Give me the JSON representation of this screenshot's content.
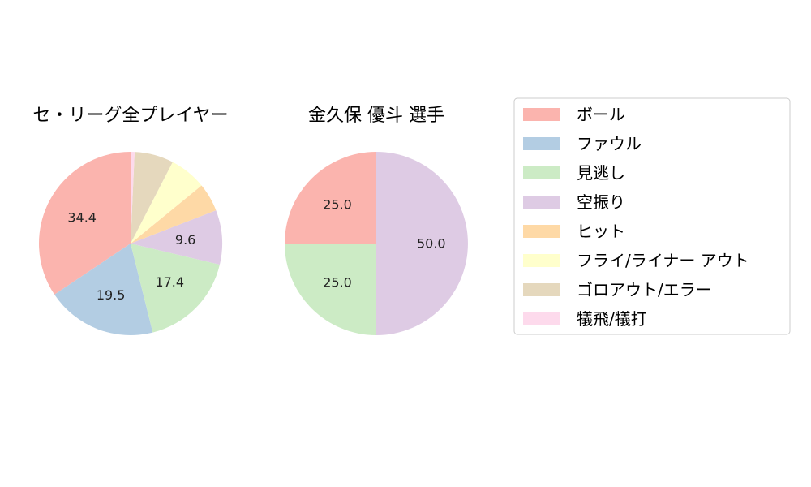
{
  "chart_data": {
    "type": "pie",
    "legend_position": "right",
    "categories": [
      "ボール",
      "ファウル",
      "見逃し",
      "空振り",
      "ヒット",
      "フライ/ライナー アウト",
      "ゴロアウト/エラー",
      "犠飛/犠打"
    ],
    "colors": [
      "#fbb4ae",
      "#b3cde3",
      "#ccebc5",
      "#decbe4",
      "#fed9a6",
      "#ffffcc",
      "#e5d8bd",
      "#fddaec"
    ],
    "pies": [
      {
        "title": "セ・リーグ全プレイヤー",
        "values": [
          34.4,
          19.5,
          17.4,
          9.6,
          5.0,
          6.5,
          6.9,
          0.7
        ],
        "labels": [
          "34.4",
          "19.5",
          "17.4",
          "9.6",
          "",
          "",
          "",
          ""
        ]
      },
      {
        "title": "金久保 優斗  選手",
        "values": [
          25.0,
          0,
          25.0,
          50.0,
          0,
          0,
          0,
          0
        ],
        "labels": [
          "25.0",
          "",
          "25.0",
          "50.0",
          "",
          "",
          "",
          ""
        ]
      }
    ]
  }
}
